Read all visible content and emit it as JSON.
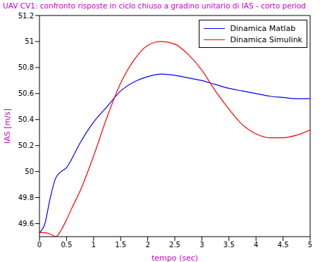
{
  "chart_data": {
    "type": "line",
    "title": "UAV CV1: confronto risposte in ciclo chiuso a gradino unitario di IAS - corto period",
    "x_label": "tempo (sec)",
    "y_label": "IAS  [m/s]",
    "x": [
      0,
      0.1,
      0.2,
      0.3,
      0.4,
      0.5,
      0.6,
      0.75,
      1,
      1.25,
      1.5,
      1.75,
      2,
      2.25,
      2.5,
      2.75,
      3,
      3.25,
      3.5,
      3.75,
      4,
      4.25,
      4.5,
      4.75,
      5
    ],
    "series": [
      {
        "name": "Dinamica Matlab",
        "color": "#0000ff",
        "values": [
          49.53,
          49.6,
          49.8,
          49.95,
          50.0,
          50.03,
          50.1,
          50.22,
          50.38,
          50.5,
          50.62,
          50.69,
          50.73,
          50.75,
          50.74,
          50.72,
          50.7,
          50.67,
          50.64,
          50.62,
          50.6,
          50.58,
          50.57,
          50.56,
          50.56
        ]
      },
      {
        "name": "Dinamica Simulink",
        "color": "#ff0000",
        "values": [
          49.53,
          49.53,
          49.52,
          49.5,
          49.55,
          49.63,
          49.72,
          49.85,
          50.12,
          50.42,
          50.68,
          50.86,
          50.97,
          51.0,
          50.98,
          50.9,
          50.78,
          50.62,
          50.48,
          50.36,
          50.29,
          50.26,
          50.26,
          50.28,
          50.32
        ]
      }
    ],
    "xlim": [
      0,
      5
    ],
    "xticks": [
      0,
      0.5,
      1,
      1.5,
      2,
      2.5,
      3,
      3.5,
      4,
      4.5,
      5
    ],
    "ylim": [
      49.5,
      51.2
    ],
    "yticks": [
      49.6,
      49.8,
      50,
      50.2,
      50.4,
      50.6,
      50.8,
      51,
      51.2
    ],
    "grid": false,
    "legend": "northeast"
  }
}
